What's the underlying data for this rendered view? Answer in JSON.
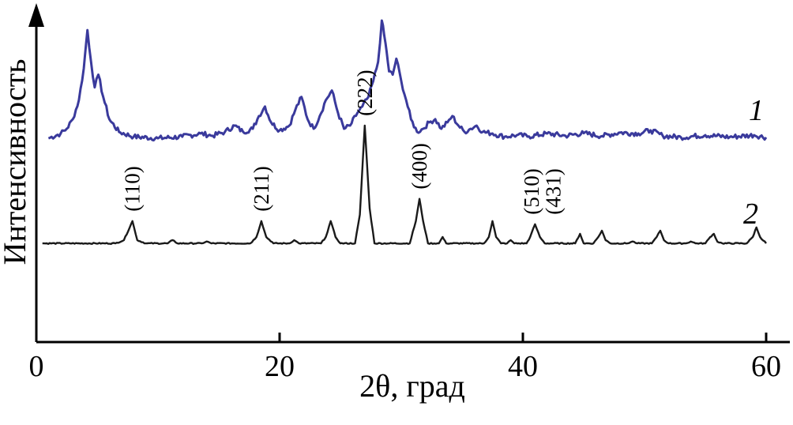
{
  "chart_data": {
    "type": "line",
    "title": "",
    "xlabel": "2θ, град",
    "ylabel": "Интенсивность",
    "xlim": [
      0,
      60
    ],
    "ylim": [
      0,
      100
    ],
    "x_ticks": [
      0,
      20,
      40,
      60
    ],
    "y_ticks": [],
    "grid": false,
    "legend": "none",
    "series": [
      {
        "name": "1",
        "color": "#3a3a9c",
        "baseline": 64,
        "points": [
          [
            1.0,
            64
          ],
          [
            2.0,
            65.5
          ],
          [
            2.5,
            67
          ],
          [
            3.0,
            70
          ],
          [
            3.5,
            76
          ],
          [
            3.9,
            86
          ],
          [
            4.2,
            98
          ],
          [
            4.5,
            88
          ],
          [
            4.8,
            80
          ],
          [
            5.1,
            84
          ],
          [
            5.5,
            77
          ],
          [
            6.0,
            70
          ],
          [
            6.8,
            66
          ],
          [
            8,
            64.5
          ],
          [
            10,
            64
          ],
          [
            12,
            64.5
          ],
          [
            13.5,
            65.5
          ],
          [
            14.5,
            64.8
          ],
          [
            15.5,
            66
          ],
          [
            16.3,
            68
          ],
          [
            17,
            66
          ],
          [
            17.8,
            67
          ],
          [
            18.3,
            71
          ],
          [
            18.8,
            74
          ],
          [
            19.3,
            69
          ],
          [
            20,
            66.5
          ],
          [
            20.8,
            68
          ],
          [
            21.3,
            73
          ],
          [
            21.8,
            77
          ],
          [
            22.3,
            70
          ],
          [
            22.8,
            67
          ],
          [
            23.3,
            71
          ],
          [
            23.8,
            76
          ],
          [
            24.3,
            79
          ],
          [
            24.8,
            72
          ],
          [
            25.3,
            67
          ],
          [
            25.8,
            68
          ],
          [
            26.4,
            72
          ],
          [
            26.8,
            74
          ],
          [
            27.3,
            77
          ],
          [
            27.7,
            82
          ],
          [
            28.1,
            88
          ],
          [
            28.4,
            101
          ],
          [
            28.7,
            94
          ],
          [
            29.0,
            85
          ],
          [
            29.3,
            84
          ],
          [
            29.6,
            89
          ],
          [
            30.0,
            82
          ],
          [
            30.4,
            76
          ],
          [
            30.8,
            70
          ],
          [
            31.3,
            66
          ],
          [
            31.8,
            67
          ],
          [
            32.3,
            69
          ],
          [
            32.8,
            70
          ],
          [
            33.3,
            67
          ],
          [
            33.8,
            69
          ],
          [
            34.2,
            71
          ],
          [
            34.7,
            68
          ],
          [
            35.2,
            66
          ],
          [
            35.7,
            67
          ],
          [
            36.2,
            68
          ],
          [
            36.7,
            66
          ],
          [
            37.5,
            65.5
          ],
          [
            38.5,
            64.5
          ],
          [
            39.5,
            65
          ],
          [
            40.5,
            64.6
          ],
          [
            42,
            65.5
          ],
          [
            43.5,
            64.8
          ],
          [
            45,
            65.6
          ],
          [
            46.5,
            64.7
          ],
          [
            48,
            65.8
          ],
          [
            49.5,
            65.5
          ],
          [
            50.5,
            66.5
          ],
          [
            51.5,
            64.8
          ],
          [
            53,
            64.3
          ],
          [
            55,
            65
          ],
          [
            57,
            64.4
          ],
          [
            59,
            65
          ],
          [
            60,
            64.3
          ]
        ]
      },
      {
        "name": "2",
        "color": "#1a1a1a",
        "baseline": 31,
        "points": [
          [
            0.5,
            31
          ],
          [
            6.5,
            31
          ],
          [
            7.2,
            32
          ],
          [
            7.9,
            38
          ],
          [
            8.3,
            32
          ],
          [
            9,
            31
          ],
          [
            10.8,
            31
          ],
          [
            11.2,
            32
          ],
          [
            11.6,
            31
          ],
          [
            13.6,
            31
          ],
          [
            14.0,
            31.6
          ],
          [
            14.4,
            31
          ],
          [
            17.6,
            31
          ],
          [
            18.1,
            33
          ],
          [
            18.5,
            38
          ],
          [
            18.9,
            33
          ],
          [
            19.5,
            31
          ],
          [
            20.8,
            31
          ],
          [
            21.2,
            32
          ],
          [
            21.6,
            31
          ],
          [
            23.4,
            31
          ],
          [
            23.8,
            33
          ],
          [
            24.2,
            38
          ],
          [
            24.6,
            33
          ],
          [
            25.0,
            31
          ],
          [
            26.2,
            31
          ],
          [
            26.6,
            40
          ],
          [
            27.0,
            68
          ],
          [
            27.4,
            42
          ],
          [
            27.8,
            31
          ],
          [
            30.7,
            31
          ],
          [
            31.2,
            38
          ],
          [
            31.5,
            45
          ],
          [
            31.8,
            38
          ],
          [
            32.2,
            31
          ],
          [
            33.1,
            31
          ],
          [
            33.4,
            33
          ],
          [
            33.7,
            31
          ],
          [
            36.8,
            31
          ],
          [
            37.2,
            33
          ],
          [
            37.5,
            38
          ],
          [
            37.8,
            33
          ],
          [
            38.2,
            31
          ],
          [
            38.7,
            31
          ],
          [
            39.0,
            32
          ],
          [
            39.3,
            31
          ],
          [
            40.3,
            31
          ],
          [
            40.6,
            33
          ],
          [
            41.0,
            37
          ],
          [
            41.4,
            33
          ],
          [
            41.8,
            31
          ],
          [
            44.3,
            31
          ],
          [
            44.7,
            34
          ],
          [
            45.0,
            31
          ],
          [
            45.8,
            31
          ],
          [
            46.2,
            33
          ],
          [
            46.5,
            35
          ],
          [
            46.8,
            32
          ],
          [
            47.2,
            31
          ],
          [
            48.6,
            31
          ],
          [
            49.0,
            31.6
          ],
          [
            49.4,
            31
          ],
          [
            50.6,
            31
          ],
          [
            51.0,
            33
          ],
          [
            51.3,
            35
          ],
          [
            51.6,
            32
          ],
          [
            52.0,
            31
          ],
          [
            53.4,
            31
          ],
          [
            53.8,
            31.6
          ],
          [
            54.2,
            31
          ],
          [
            55.0,
            31
          ],
          [
            55.4,
            33
          ],
          [
            55.7,
            34
          ],
          [
            56.0,
            31.5
          ],
          [
            56.4,
            31
          ],
          [
            58.4,
            31
          ],
          [
            58.9,
            33
          ],
          [
            59.2,
            36
          ],
          [
            59.5,
            33
          ],
          [
            60,
            31
          ]
        ]
      }
    ],
    "annotations": [
      {
        "text": "(110)",
        "x": 7.9,
        "y": 41
      },
      {
        "text": "(211)",
        "x": 18.5,
        "y": 41
      },
      {
        "text": "(222)",
        "x": 27.0,
        "y": 71
      },
      {
        "text": "(400)",
        "x": 31.5,
        "y": 48
      },
      {
        "text": "(510)",
        "x": 40.7,
        "y": 40
      },
      {
        "text": "(431)",
        "x": 42.5,
        "y": 40
      }
    ]
  }
}
